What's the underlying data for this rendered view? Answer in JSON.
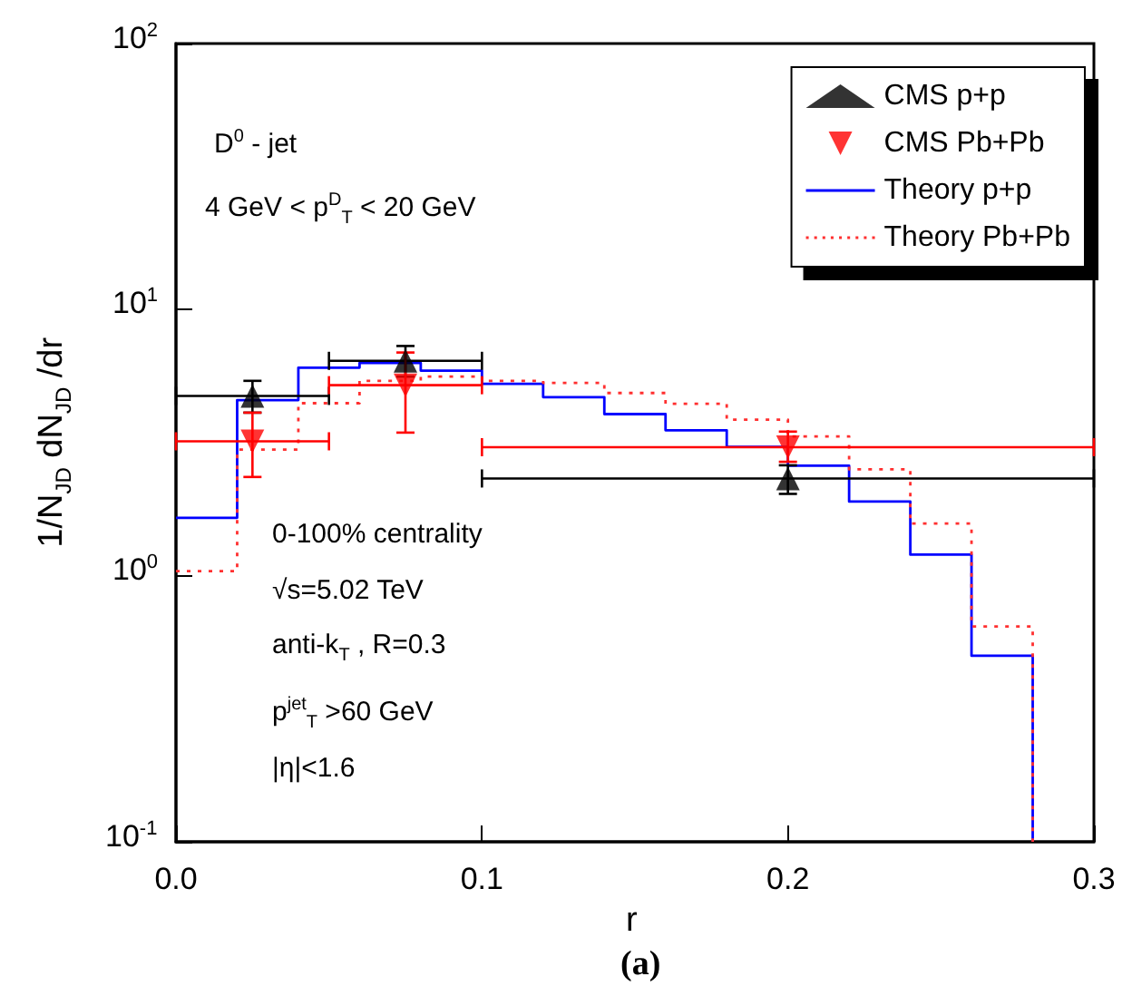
{
  "chart_data": {
    "type": "step",
    "xlabel": "r",
    "ylabel": "1/N$_{JD}$ dN$_{JD}$ /dr",
    "log": "y",
    "xlim": [
      0,
      0.3
    ],
    "xticks": [
      {
        "value": 0,
        "label": "0.0"
      },
      0.1,
      0.2,
      0.3
    ],
    "ylim": [
      0.1,
      100
    ],
    "yticks": [
      {
        "value": 0.1,
        "label": "10$^{-1}$"
      },
      {
        "value": 1,
        "label": "10$^{0}$"
      },
      {
        "value": 10,
        "label": "10$^{1}$"
      },
      {
        "value": 100,
        "label": "10$^{2}$"
      }
    ],
    "legend": "top right",
    "grid": false,
    "annotations": [
      "D$^{0}$ - jet",
      "4 GeV < p$^{D}$$_{T}$ < 20 GeV",
      "0-100% centrality",
      "√s=5.02 TeV",
      "anti-k$_{T}$ , R=0.3",
      "p$^{jet}$$_{T}$ >60 GeV",
      "|η|<1.6",
      "(a)"
    ],
    "series": [
      {
        "name": "CMS p+p",
        "type": "scatter",
        "marker": "triangle",
        "color": "#000000",
        "x": [
          0.025,
          0.075,
          0.2
        ],
        "values": [
          4.74,
          6.42,
          2.32
        ],
        "errors": [
          [
            4.1,
            5.4
          ],
          [
            5.6,
            7.3
          ],
          [
            2.03,
            2.6
          ]
        ],
        "xerrors": [
          0.025,
          0.025,
          0.1
        ]
      },
      {
        "name": "CMS Pb+Pb",
        "type": "scatter",
        "marker": "triangle-down",
        "color": "#ff0000",
        "x": [
          0.025,
          0.075,
          0.2
        ],
        "values": [
          3.2,
          5.2,
          3.04
        ],
        "errors": [
          [
            2.35,
            4.1
          ],
          [
            3.45,
            6.9
          ],
          [
            2.68,
            3.48
          ]
        ],
        "xerrors": [
          0.025,
          0.025,
          0.1
        ]
      },
      {
        "name": "Theory p+p",
        "marker": "none",
        "line_style": "solid",
        "color": "#0000ff",
        "x": [
          0,
          0.02,
          0.04,
          0.06,
          0.08,
          0.1,
          0.12,
          0.14,
          0.16,
          0.18,
          0.2,
          0.22,
          0.24,
          0.26,
          0.28
        ],
        "values": [
          1.65,
          4.57,
          6.05,
          6.3,
          5.9,
          5.26,
          4.69,
          4.05,
          3.52,
          3.05,
          2.59,
          1.9,
          1.2,
          0.5,
          0.1
        ]
      },
      {
        "name": "Theory Pb+Pb",
        "marker": "none",
        "line_style": "dotted",
        "color": "#ff3030",
        "x": [
          0,
          0.02,
          0.04,
          0.06,
          0.08,
          0.1,
          0.12,
          0.14,
          0.16,
          0.18,
          0.2,
          0.22,
          0.24,
          0.26,
          0.28
        ],
        "values": [
          1.04,
          2.98,
          4.45,
          5.4,
          5.6,
          5.4,
          5.3,
          4.86,
          4.43,
          3.86,
          3.34,
          2.51,
          1.57,
          0.645,
          0.1
        ]
      }
    ]
  }
}
